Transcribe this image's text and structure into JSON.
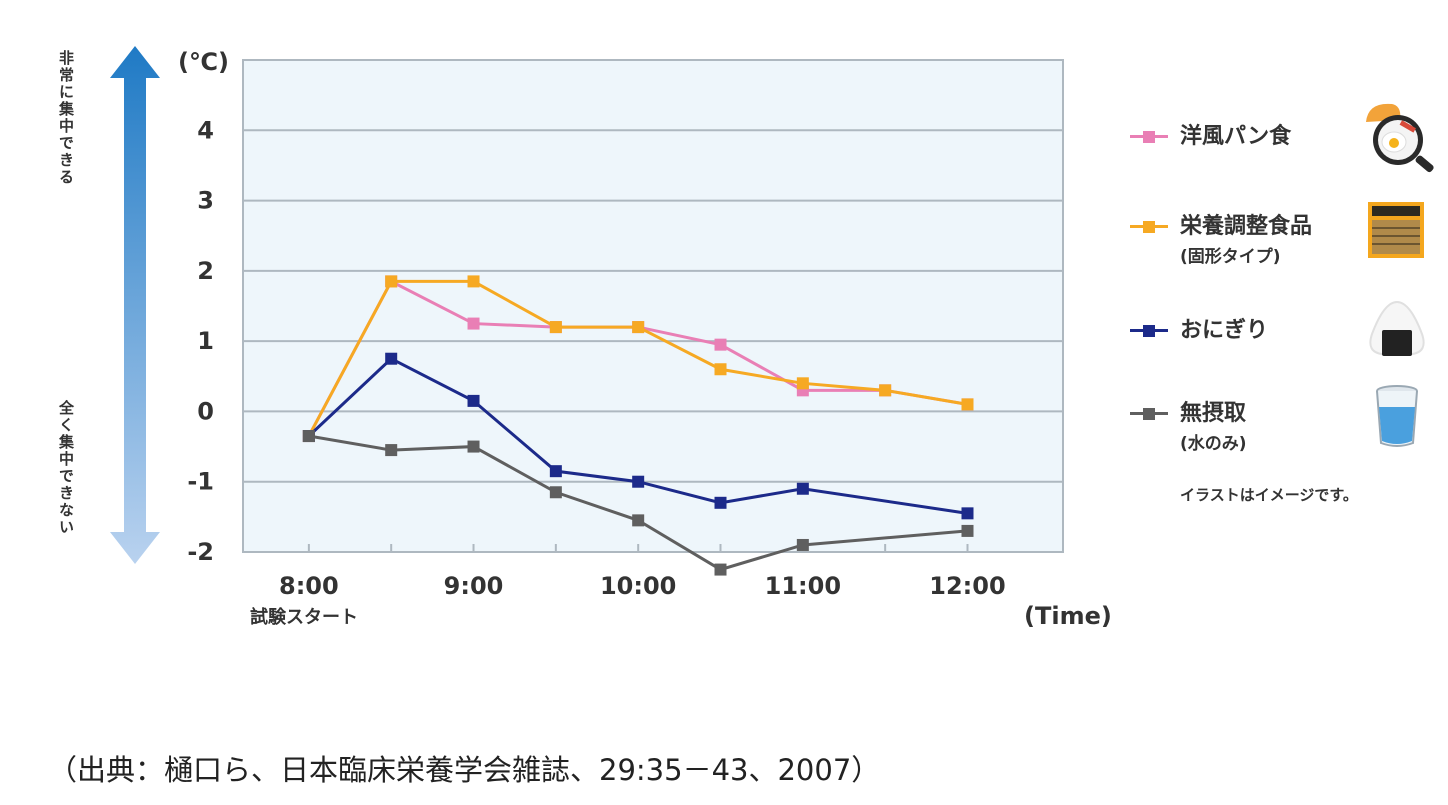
{
  "chart_data": {
    "type": "line",
    "unit_label": "(℃)",
    "x_unit_label": "(Time)",
    "x_start_note": "試験スタート",
    "ylim": [
      -2,
      5
    ],
    "yticks": [
      4,
      3,
      2,
      1,
      0,
      -1,
      -2
    ],
    "xlim": [
      7.6,
      12.58
    ],
    "x_ticks": [
      {
        "x": 8,
        "label": "8:00"
      },
      {
        "x": 9,
        "label": "9:00"
      },
      {
        "x": 10,
        "label": "10:00"
      },
      {
        "x": 11,
        "label": "11:00"
      },
      {
        "x": 12,
        "label": "12:00"
      }
    ],
    "minor_ticks": [
      8.5,
      9.5,
      10.5,
      11.5
    ],
    "grid": true,
    "legend_position": "right",
    "focus_arrow": {
      "top_label": "非常に集中できる",
      "bottom_label": "全く集中できない"
    },
    "series": [
      {
        "name": "洋風パン食",
        "color": "#e97fb5",
        "x": [
          8,
          8.5,
          9,
          9.5,
          10,
          10.5,
          11,
          11.5,
          12
        ],
        "values": [
          -0.35,
          1.85,
          1.25,
          1.2,
          1.2,
          0.95,
          0.3,
          0.3,
          0.1
        ]
      },
      {
        "name": "栄養調整食品",
        "sublabel": "(固形タイプ)",
        "color": "#f6a923",
        "x": [
          8,
          8.5,
          9,
          9.5,
          10,
          10.5,
          11,
          11.5,
          12
        ],
        "values": [
          -0.35,
          1.85,
          1.85,
          1.2,
          1.2,
          0.6,
          0.4,
          0.3,
          0.1
        ]
      },
      {
        "name": "おにぎり",
        "color": "#1c2a8a",
        "x": [
          8,
          8.5,
          9,
          9.5,
          10,
          10.5,
          11,
          12
        ],
        "values": [
          -0.35,
          0.75,
          0.15,
          -0.85,
          -1.0,
          -1.3,
          -1.1,
          -1.45
        ]
      },
      {
        "name": "無摂取",
        "sublabel": "(水のみ)",
        "color": "#5f5f5f",
        "x": [
          8,
          8.5,
          9,
          9.5,
          10,
          10.5,
          11,
          12
        ],
        "values": [
          -0.35,
          -0.55,
          -0.5,
          -1.15,
          -1.55,
          -2.25,
          -1.9,
          -1.7
        ]
      }
    ]
  },
  "legend_icons": [
    "bread-egg-pan-icon",
    "nutrition-bar-icon",
    "onigiri-icon",
    "water-glass-icon"
  ],
  "illustration_note": "イラストはイメージです。",
  "source_text": "（出典：樋口ら、日本臨床栄養学会雑誌、29:35－43、2007）"
}
